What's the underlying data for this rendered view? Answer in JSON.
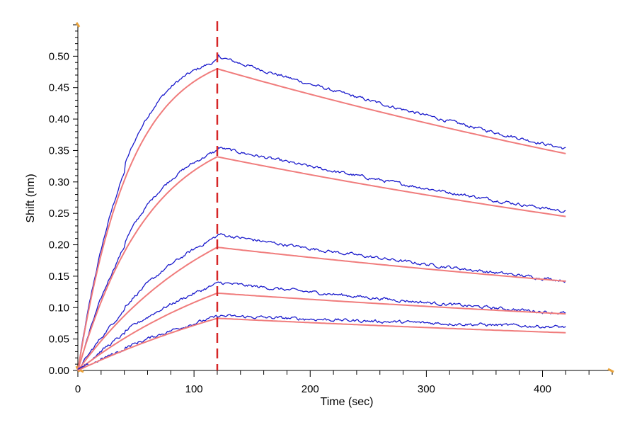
{
  "chart_data": {
    "type": "line",
    "title": "",
    "xlabel": "Time (sec)",
    "ylabel": "Shift (nm)",
    "xlim": [
      0,
      460
    ],
    "ylim": [
      0,
      0.55
    ],
    "x_ticks": [
      0,
      100,
      200,
      300,
      400
    ],
    "y_ticks": [
      0.0,
      0.05,
      0.1,
      0.15,
      0.2,
      0.25,
      0.3,
      0.35,
      0.4,
      0.45,
      0.5
    ],
    "y_tick_labels": [
      "0.00",
      "0.05",
      "0.10",
      "0.15",
      "0.20",
      "0.25",
      "0.30",
      "0.35",
      "0.40",
      "0.45",
      "0.50"
    ],
    "x_tick_labels": [
      "0",
      "100",
      "200",
      "300",
      "400"
    ],
    "grid": false,
    "legend": "none",
    "reference_line": {
      "x": 120,
      "color": "#d62728",
      "style": "dashed"
    },
    "colors": {
      "measured": "#1a1acc",
      "fit": "#f07c7c"
    },
    "association_end": 120,
    "end_time": 420,
    "series": [
      {
        "role": "measured",
        "points": [
          [
            0,
            0
          ],
          [
            120,
            0.5
          ],
          [
            420,
            0.353
          ]
        ]
      },
      {
        "role": "fit",
        "points": [
          [
            0,
            0
          ],
          [
            120,
            0.48
          ],
          [
            420,
            0.345
          ]
        ]
      },
      {
        "role": "measured",
        "points": [
          [
            0,
            0
          ],
          [
            120,
            0.355
          ],
          [
            420,
            0.253
          ]
        ]
      },
      {
        "role": "fit",
        "points": [
          [
            0,
            0
          ],
          [
            120,
            0.34
          ],
          [
            420,
            0.245
          ]
        ]
      },
      {
        "role": "measured",
        "points": [
          [
            0,
            0
          ],
          [
            120,
            0.217
          ],
          [
            420,
            0.143
          ]
        ]
      },
      {
        "role": "fit",
        "points": [
          [
            0,
            0
          ],
          [
            120,
            0.196
          ],
          [
            420,
            0.142
          ]
        ]
      },
      {
        "role": "measured",
        "points": [
          [
            0,
            0
          ],
          [
            120,
            0.14
          ],
          [
            420,
            0.091
          ]
        ]
      },
      {
        "role": "fit",
        "points": [
          [
            0,
            0
          ],
          [
            120,
            0.123
          ],
          [
            420,
            0.09
          ]
        ]
      },
      {
        "role": "measured",
        "points": [
          [
            0,
            0
          ],
          [
            120,
            0.087
          ],
          [
            420,
            0.069
          ]
        ]
      },
      {
        "role": "fit",
        "points": [
          [
            0,
            0
          ],
          [
            120,
            0.083
          ],
          [
            420,
            0.06
          ]
        ]
      }
    ]
  }
}
